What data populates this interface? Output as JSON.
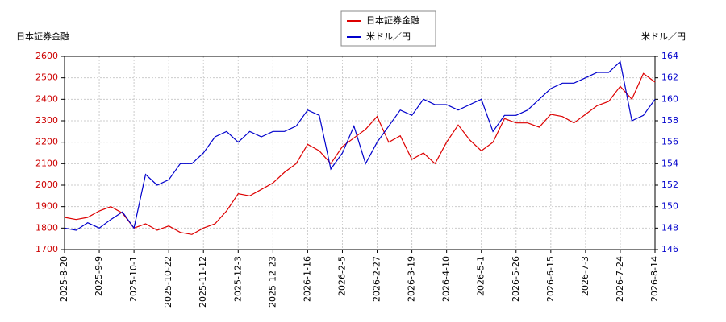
{
  "chart_data": {
    "type": "line",
    "ylabel": "日本証券金融",
    "y2label": "米ドル／円",
    "categories": [
      "2025-8-20",
      null,
      null,
      "2025-9-9",
      null,
      null,
      "2025-10-1",
      null,
      null,
      "2025-10-22",
      null,
      null,
      "2025-11-12",
      null,
      null,
      "2025-12-3",
      null,
      null,
      "2025-12-23",
      null,
      null,
      "2026-1-16",
      null,
      null,
      "2026-2-5",
      null,
      null,
      "2026-2-27",
      null,
      null,
      "2026-3-19",
      null,
      null,
      "2026-4-10",
      null,
      null,
      "2026-5-1",
      null,
      null,
      "2026-5-26",
      null,
      null,
      "2026-6-15",
      null,
      null,
      "2026-7-3",
      null,
      null,
      "2026-7-24",
      null,
      null,
      "2026-8-14"
    ],
    "series": [
      {
        "name": "日本証券金融",
        "color": "#dd0000",
        "axis": "y",
        "values": [
          1850,
          1840,
          1850,
          1880,
          1900,
          1870,
          1800,
          1820,
          1790,
          1810,
          1780,
          1770,
          1800,
          1820,
          1880,
          1960,
          1950,
          1980,
          2010,
          2060,
          2100,
          2190,
          2160,
          2100,
          2180,
          2220,
          2260,
          2320,
          2200,
          2230,
          2120,
          2150,
          2100,
          2200,
          2280,
          2210,
          2160,
          2200,
          2310,
          2290,
          2290,
          2270,
          2330,
          2320,
          2290,
          2330,
          2370,
          2390,
          2460,
          2400,
          2520,
          2480
        ]
      },
      {
        "name": "米ドル／円",
        "color": "#0000cc",
        "axis": "y2",
        "values": [
          148,
          147.8,
          148.5,
          148,
          148.8,
          149.5,
          148,
          153,
          152,
          152.5,
          154,
          154,
          155,
          156.5,
          157,
          156,
          157,
          156.5,
          157,
          157,
          157.5,
          159,
          158.5,
          153.5,
          155,
          157.5,
          154,
          156,
          157.5,
          159,
          158.5,
          160,
          159.5,
          159.5,
          159,
          159.5,
          160,
          157,
          158.5,
          158.5,
          159,
          160,
          161,
          161.5,
          161.5,
          162,
          162.5,
          162.5,
          163.5,
          158,
          158.5,
          160
        ]
      }
    ],
    "ylim": [
      1700,
      2600
    ],
    "yticks": [
      1700,
      1800,
      1900,
      2000,
      2100,
      2200,
      2300,
      2400,
      2500,
      2600
    ],
    "y2lim": [
      146,
      164
    ],
    "y2ticks": [
      146,
      148,
      150,
      152,
      154,
      156,
      158,
      160,
      162,
      164
    ],
    "grid": true
  }
}
